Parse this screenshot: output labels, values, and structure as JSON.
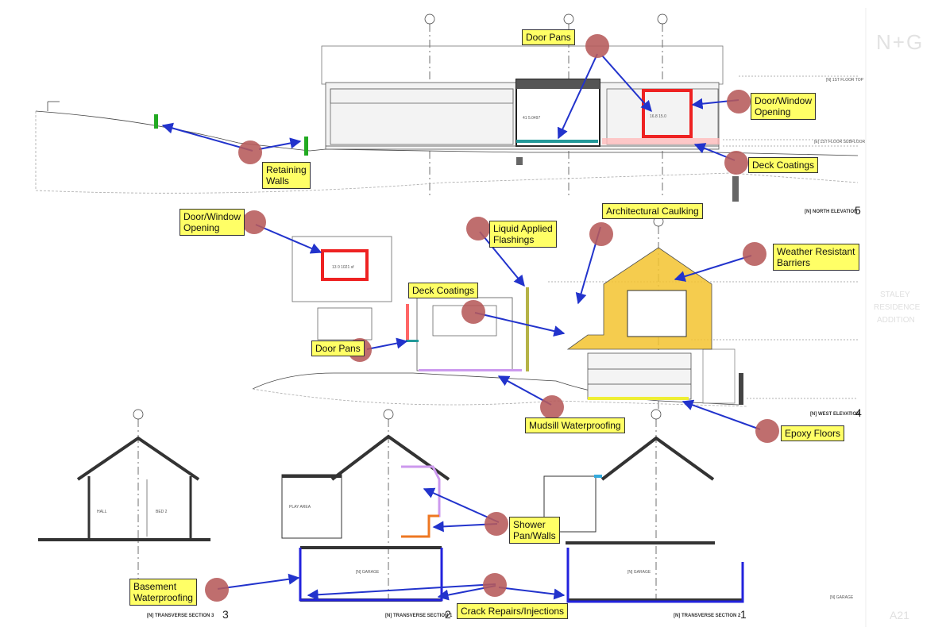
{
  "callouts": {
    "door_pans_top": "Door Pans",
    "door_window_opening_right": "Door/Window\nOpening",
    "retaining_walls": "Retaining\nWalls",
    "deck_coatings_top": "Deck Coatings",
    "door_window_opening_left": "Door/Window\nOpening",
    "liquid_applied_flashings": "Liquid Applied\nFlashings",
    "architectural_caulking": "Architectural Caulking",
    "weather_resistant_barriers": "Weather Resistant\nBarriers",
    "deck_coatings_mid": "Deck Coatings",
    "door_pans_mid": "Door Pans",
    "mudsill_waterproofing": "Mudsill Waterproofing",
    "epoxy_floors": "Epoxy Floors",
    "shower_pan_walls": "Shower\nPan/Walls",
    "basement_waterproofing": "Basement\nWaterproofing",
    "crack_repairs_injections": "Crack Repairs/Injections"
  },
  "drawing_titles": {
    "north_elevation": "[N] NORTH ELEVATION",
    "north_elevation_num": "5",
    "west_elevation": "[N] WEST ELEVATION",
    "west_elevation_num": "4",
    "section_3": "[N] TRANSVERSE SECTION 3",
    "section_3_num": "3",
    "section_1": "[N] TRANSVERSE SECTION 1",
    "section_1_num": "2",
    "section_2": "[N] TRANSVERSE SECTION 2",
    "section_2_num": "1"
  },
  "room_labels": {
    "hall": "HALL",
    "bed2": "BED 2",
    "play_area": "PLAY AREA",
    "garage1": "[N] GARAGE",
    "garage2": "[N] GARAGE"
  },
  "annotations": {
    "area_top": "41 5.0497",
    "area_top_right": "16.8 15.0",
    "area_left": "13 0 1021 sf",
    "level_roof": "[N] 1ST FLOOR TOP",
    "level_floor": "[E] 1ST FLOOR SUBFLOOR",
    "level_garage": "[N] GARAGE"
  },
  "title_block": {
    "logo": "N+G",
    "project_line1": "STALEY",
    "project_line2": "RESIDENCE",
    "project_line3": "ADDITION",
    "sheet": "A21"
  },
  "colors": {
    "callout_fill": "#ffff66",
    "dot": "#b65a5a",
    "arrow": "#2233cc",
    "deck_coating": "#ff8888",
    "opening": "#ee2222",
    "retaining": "#22aa22",
    "wrb": "#f4c430",
    "basement": "#2222dd",
    "shower": "#ee7722",
    "mudsill": "#cc99ee"
  }
}
